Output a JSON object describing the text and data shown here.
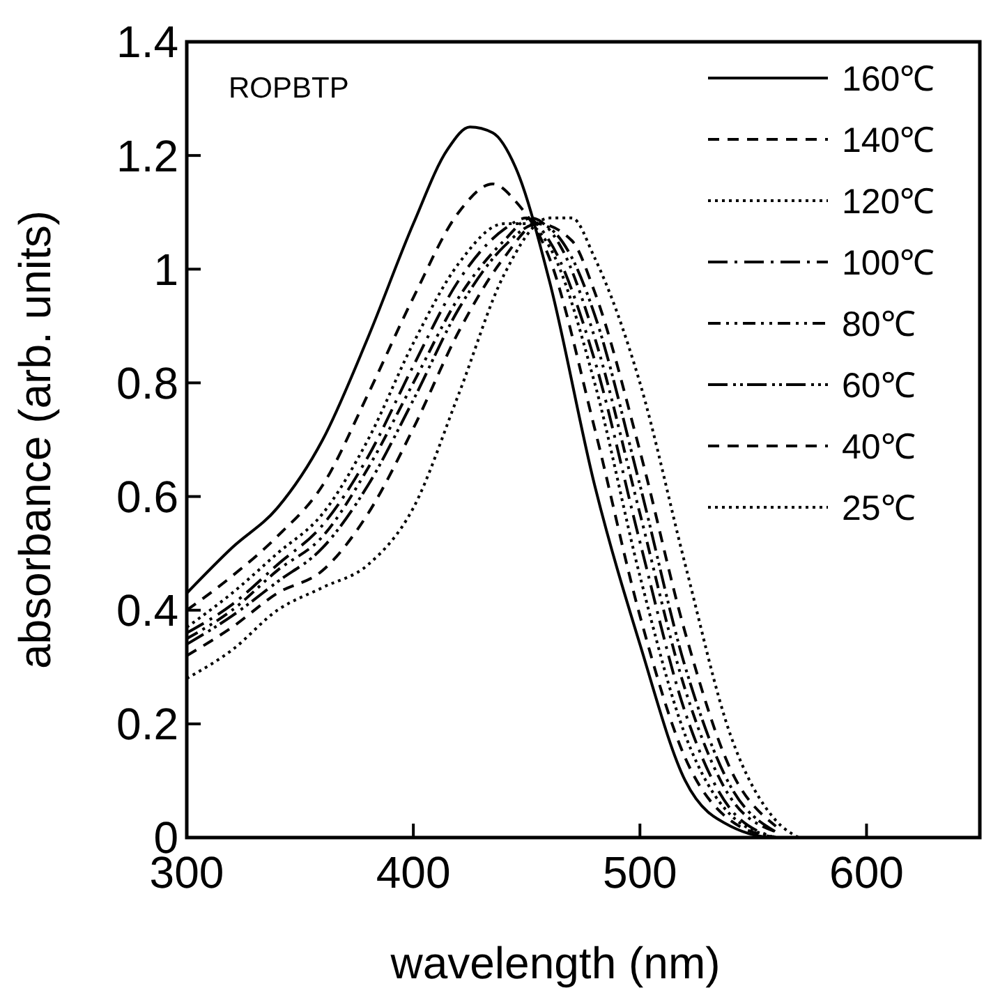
{
  "chart_data": {
    "type": "line",
    "xlabel": "wavelength (nm)",
    "ylabel": "absorbance (arb. units)",
    "annotations": [
      "ROPBTP"
    ],
    "xlim": [
      300,
      650
    ],
    "xticks": [
      300,
      400,
      500,
      600
    ],
    "ylim": [
      0,
      1.4
    ],
    "yticks": [
      0,
      0.2,
      0.4,
      0.6,
      0.8,
      {
        "value": 1,
        "label": "1"
      },
      1.2,
      1.4
    ],
    "grid": false,
    "legend": "top right",
    "series": [
      {
        "name": "160℃",
        "color": "#000000",
        "line_style": "solid",
        "x": [
          300,
          320,
          340,
          360,
          380,
          400,
          415,
          425,
          435,
          445,
          460,
          480,
          500,
          520,
          540,
          560,
          610
        ],
        "values": [
          0.43,
          0.51,
          0.58,
          0.7,
          0.88,
          1.08,
          1.21,
          1.25,
          1.24,
          1.18,
          0.98,
          0.62,
          0.34,
          0.1,
          0.02,
          0,
          0
        ]
      },
      {
        "name": "140℃",
        "color": "#000000",
        "line_style": "dashed",
        "x": [
          300,
          320,
          340,
          360,
          380,
          400,
          420,
          435,
          445,
          460,
          480,
          500,
          520,
          540,
          560
        ],
        "values": [
          0.4,
          0.46,
          0.53,
          0.62,
          0.78,
          0.95,
          1.1,
          1.15,
          1.12,
          1.02,
          0.72,
          0.39,
          0.14,
          0.03,
          0
        ]
      },
      {
        "name": "120℃",
        "color": "#000000",
        "line_style": "dotted",
        "x": [
          300,
          320,
          340,
          360,
          380,
          400,
          420,
          440,
          450,
          460,
          480,
          500,
          520,
          540,
          560
        ],
        "values": [
          0.37,
          0.43,
          0.5,
          0.57,
          0.7,
          0.87,
          1.01,
          1.08,
          1.08,
          1.04,
          0.8,
          0.46,
          0.18,
          0.04,
          0
        ]
      },
      {
        "name": "100℃",
        "color": "#000000",
        "line_style": "dashdot",
        "x": [
          300,
          320,
          340,
          360,
          380,
          400,
          420,
          440,
          450,
          460,
          480,
          500,
          520,
          540,
          560
        ],
        "values": [
          0.36,
          0.41,
          0.48,
          0.55,
          0.67,
          0.83,
          0.98,
          1.07,
          1.09,
          1.05,
          0.84,
          0.52,
          0.22,
          0.05,
          0
        ]
      },
      {
        "name": "80℃",
        "color": "#000000",
        "line_style": "dashdotdot",
        "x": [
          300,
          320,
          340,
          360,
          380,
          400,
          420,
          440,
          452,
          465,
          480,
          500,
          520,
          540,
          560
        ],
        "values": [
          0.35,
          0.4,
          0.47,
          0.53,
          0.65,
          0.8,
          0.95,
          1.05,
          1.09,
          1.04,
          0.88,
          0.57,
          0.26,
          0.07,
          0.01
        ]
      },
      {
        "name": "60℃",
        "color": "#000000",
        "line_style": "longdashdotdot",
        "x": [
          300,
          320,
          340,
          360,
          380,
          400,
          420,
          440,
          455,
          470,
          480,
          500,
          520,
          540,
          560
        ],
        "values": [
          0.34,
          0.39,
          0.45,
          0.51,
          0.62,
          0.77,
          0.93,
          1.04,
          1.08,
          1.02,
          0.92,
          0.62,
          0.3,
          0.09,
          0.01
        ]
      },
      {
        "name": "40℃",
        "color": "#000000",
        "line_style": "dashed",
        "x": [
          300,
          320,
          340,
          360,
          380,
          400,
          420,
          440,
          455,
          470,
          480,
          500,
          520,
          540,
          560
        ],
        "values": [
          0.32,
          0.37,
          0.43,
          0.47,
          0.57,
          0.72,
          0.89,
          1.02,
          1.08,
          1.05,
          0.96,
          0.68,
          0.36,
          0.12,
          0.02
        ]
      },
      {
        "name": "25℃",
        "color": "#000000",
        "line_style": "dotted",
        "x": [
          300,
          320,
          340,
          360,
          380,
          400,
          420,
          440,
          460,
          470,
          480,
          500,
          520,
          540,
          560,
          570
        ],
        "values": [
          0.28,
          0.33,
          0.4,
          0.44,
          0.48,
          0.58,
          0.78,
          0.99,
          1.09,
          1.09,
          1.02,
          0.8,
          0.48,
          0.18,
          0.03,
          0
        ]
      }
    ]
  }
}
